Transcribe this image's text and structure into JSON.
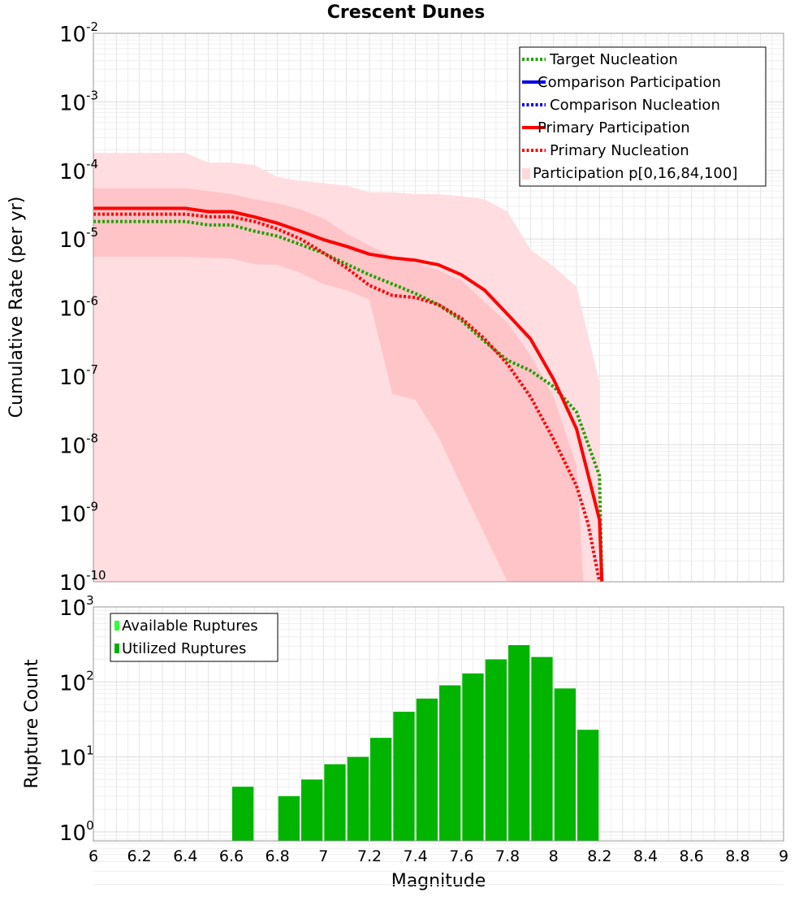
{
  "chart_data": [
    {
      "type": "line",
      "title": "Crescent Dunes",
      "ylabel": "Cumulative Rate (per yr)",
      "xlabel": "",
      "xlim": [
        6,
        9
      ],
      "ylim_log10": [
        -10,
        -2
      ],
      "yscale": "log",
      "grid": true,
      "y_tick_exponents": [
        "-2",
        "-3",
        "-4",
        "-5",
        "-6",
        "-7",
        "-8",
        "-9",
        "-10"
      ],
      "legend_position": "top-right",
      "legend": [
        {
          "label": "Target Nucleation",
          "color": "#22a000",
          "style": "dotted"
        },
        {
          "label": "Comparison Participation",
          "color": "#0000ee",
          "style": "solid"
        },
        {
          "label": "Comparison Nucleation",
          "color": "#0000ee",
          "style": "dotted"
        },
        {
          "label": "Primary Participation",
          "color": "#ff0000",
          "style": "solid"
        },
        {
          "label": "Primary Nucleation",
          "color": "#ff0000",
          "style": "dotted"
        },
        {
          "label": "Participation p[0,16,84,100]",
          "color": "#ffd8dc",
          "style": "band"
        }
      ],
      "bands": {
        "outer": {
          "color": "#ffdde0",
          "x": [
            6.0,
            6.4,
            6.5,
            6.6,
            6.7,
            6.8,
            6.9,
            7.0,
            7.1,
            7.2,
            7.3,
            7.4,
            7.5,
            7.6,
            7.7,
            7.8,
            7.9,
            8.0,
            8.1,
            8.2
          ],
          "upper": [
            0.00018,
            0.00018,
            0.00013,
            0.00013,
            0.00012,
            8e-05,
            7e-05,
            6.5e-05,
            6e-05,
            4.8e-05,
            4.8e-05,
            4.5e-05,
            4.5e-05,
            4.2e-05,
            3.8e-05,
            2.5e-05,
            7e-06,
            4e-06,
            2e-06,
            8e-08
          ],
          "lower": [
            1e-10,
            1e-10,
            1e-10,
            1e-10,
            1e-10,
            1e-10,
            1e-10,
            1e-10,
            1e-10,
            1e-10,
            1e-10,
            1e-10,
            1e-10,
            1e-10,
            1e-10,
            1e-10,
            1e-10,
            1e-10,
            1e-10,
            1e-10
          ]
        },
        "inner": {
          "color": "#ffc4c8",
          "x": [
            6.0,
            6.4,
            6.6,
            6.7,
            6.8,
            6.9,
            7.0,
            7.1,
            7.2,
            7.3,
            7.4,
            7.5,
            7.6,
            7.7,
            7.8,
            7.9,
            8.0,
            8.1,
            8.13
          ],
          "upper": [
            5.5e-05,
            5.5e-05,
            4.5e-05,
            3.8e-05,
            3.3e-05,
            2.7e-05,
            2e-05,
            1.2e-05,
            8e-06,
            5.5e-06,
            4.5e-06,
            3.5e-06,
            2.5e-06,
            1.2e-06,
            6e-07,
            2e-07,
            5e-08,
            5e-09,
            1e-10
          ],
          "lower": [
            5.5e-06,
            5.5e-06,
            5.2e-06,
            4.3e-06,
            4.2e-06,
            3.2e-06,
            2.2e-06,
            1.8e-06,
            1.3e-06,
            5.5e-08,
            4.5e-08,
            1.3e-08,
            2.5e-09,
            5e-10,
            1e-10,
            1e-10,
            1e-10,
            1e-10,
            1e-10
          ]
        }
      },
      "series": [
        {
          "name": "Primary Participation",
          "color": "#ff0000",
          "style": "solid",
          "x": [
            6.0,
            6.1,
            6.2,
            6.3,
            6.4,
            6.5,
            6.6,
            6.7,
            6.8,
            6.9,
            7.0,
            7.1,
            7.2,
            7.3,
            7.4,
            7.5,
            7.6,
            7.7,
            7.8,
            7.9,
            8.0,
            8.1,
            8.2,
            8.21
          ],
          "y": [
            2.8e-05,
            2.8e-05,
            2.8e-05,
            2.8e-05,
            2.8e-05,
            2.5e-05,
            2.5e-05,
            2.1e-05,
            1.7e-05,
            1.3e-05,
            9.8e-06,
            7.8e-06,
            6e-06,
            5.3e-06,
            4.9e-06,
            4.2e-06,
            3e-06,
            1.8e-06,
            8e-07,
            3.5e-07,
            9e-08,
            1.7e-08,
            8e-10,
            1e-10
          ]
        },
        {
          "name": "Primary Nucleation",
          "color": "#ff0000",
          "style": "dotted",
          "x": [
            6.0,
            6.1,
            6.2,
            6.3,
            6.4,
            6.5,
            6.6,
            6.7,
            6.8,
            6.9,
            7.0,
            7.1,
            7.2,
            7.3,
            7.4,
            7.5,
            7.6,
            7.7,
            7.8,
            7.9,
            8.0,
            8.1,
            8.15,
            8.2
          ],
          "y": [
            2.3e-05,
            2.3e-05,
            2.3e-05,
            2.3e-05,
            2.3e-05,
            2.1e-05,
            2.1e-05,
            1.8e-05,
            1.4e-05,
            1e-05,
            6.3e-06,
            3.8e-06,
            2.1e-06,
            1.5e-06,
            1.4e-06,
            1.1e-06,
            7e-07,
            3.5e-07,
            1.5e-07,
            5e-08,
            1.2e-08,
            2.5e-09,
            7e-10,
            1e-10
          ]
        },
        {
          "name": "Target Nucleation",
          "color": "#22a000",
          "style": "dotted",
          "x": [
            6.0,
            6.1,
            6.2,
            6.3,
            6.4,
            6.5,
            6.6,
            6.7,
            6.8,
            6.9,
            7.0,
            7.1,
            7.2,
            7.3,
            7.4,
            7.5,
            7.6,
            7.7,
            7.8,
            7.9,
            8.0,
            8.1,
            8.2,
            8.21
          ],
          "y": [
            1.8e-05,
            1.8e-05,
            1.8e-05,
            1.8e-05,
            1.8e-05,
            1.6e-05,
            1.6e-05,
            1.3e-05,
            1.1e-05,
            8.3e-06,
            6.2e-06,
            4.3e-06,
            3e-06,
            2.2e-06,
            1.6e-06,
            1.1e-06,
            6.5e-07,
            3.2e-07,
            1.7e-07,
            1.2e-07,
            7e-08,
            3e-08,
            3.5e-09,
            1e-10
          ]
        }
      ]
    },
    {
      "type": "bar",
      "ylabel": "Rupture Count",
      "xlabel": "Magnitude",
      "xlim": [
        6,
        9
      ],
      "ylim_log10": [
        -0.12,
        3
      ],
      "yscale": "log",
      "grid": true,
      "y_tick_exponents": [
        "3",
        "2",
        "1",
        "0"
      ],
      "x_ticks": [
        "6",
        "6.2",
        "6.4",
        "6.6",
        "6.8",
        "7",
        "7.2",
        "7.4",
        "7.6",
        "7.8",
        "8",
        "8.2",
        "8.4",
        "8.6",
        "8.8",
        "9"
      ],
      "legend_position": "top-left",
      "legend": [
        {
          "label": "Available Ruptures",
          "color": "#33ff33"
        },
        {
          "label": "Utilized Ruptures",
          "color": "#00b000"
        }
      ],
      "bar_color": "#00b400",
      "bars": [
        {
          "x": 6.65,
          "value": 4
        },
        {
          "x": 6.85,
          "value": 3
        },
        {
          "x": 6.95,
          "value": 5
        },
        {
          "x": 7.05,
          "value": 8
        },
        {
          "x": 7.15,
          "value": 10
        },
        {
          "x": 7.25,
          "value": 18
        },
        {
          "x": 7.35,
          "value": 40
        },
        {
          "x": 7.45,
          "value": 60
        },
        {
          "x": 7.55,
          "value": 90
        },
        {
          "x": 7.65,
          "value": 130
        },
        {
          "x": 7.75,
          "value": 200
        },
        {
          "x": 7.85,
          "value": 310
        },
        {
          "x": 7.95,
          "value": 215
        },
        {
          "x": 8.05,
          "value": 82
        },
        {
          "x": 8.15,
          "value": 23
        }
      ]
    }
  ]
}
